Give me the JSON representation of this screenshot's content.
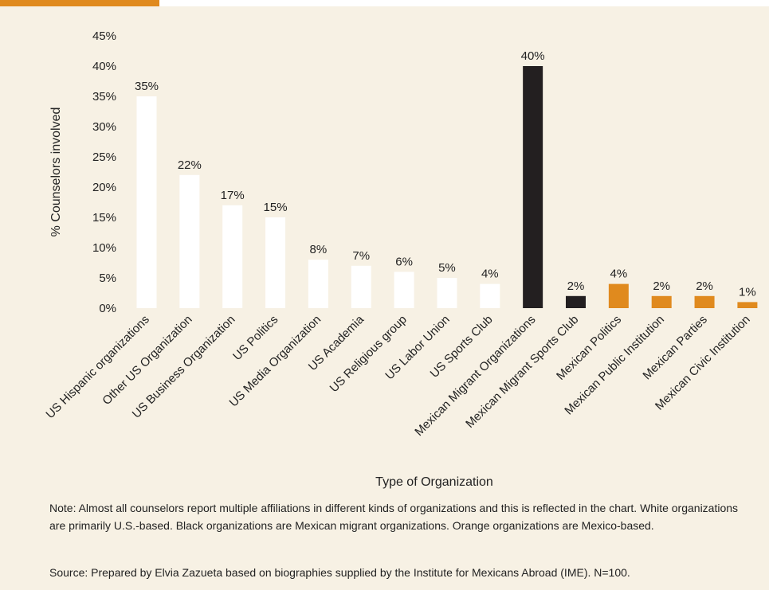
{
  "chart_data": {
    "type": "bar",
    "x_label": "Type of Organization",
    "y_label": "% Counselors involved",
    "categories": [
      "US Hispanic organizations",
      "Other US Organization",
      "US Business Organization",
      "US Politics",
      "US Media Organization",
      "US Academia",
      "US Religious group",
      "US Labor Union",
      "US Sports Club",
      "Mexican Migrant Organizations",
      "Mexican Migrant Sports Club",
      "Mexican Politics",
      "Mexican Public Institution",
      "Mexican Parties",
      "Mexican Civic Institution"
    ],
    "values": [
      35,
      22,
      17,
      15,
      8,
      7,
      6,
      5,
      4,
      40,
      2,
      4,
      2,
      2,
      1
    ],
    "value_labels": [
      "35%",
      "22%",
      "17%",
      "15%",
      "8%",
      "7%",
      "6%",
      "5%",
      "4%",
      "40%",
      "2%",
      "4%",
      "2%",
      "2%",
      "1%"
    ],
    "colors": [
      "#ffffff",
      "#ffffff",
      "#ffffff",
      "#ffffff",
      "#ffffff",
      "#ffffff",
      "#ffffff",
      "#ffffff",
      "#ffffff",
      "#231f20",
      "#231f20",
      "#e08a1e",
      "#e08a1e",
      "#e08a1e",
      "#e08a1e"
    ],
    "ylim": [
      0,
      45
    ],
    "yticks": [
      {
        "value": 0,
        "label": "0%"
      },
      {
        "value": 5,
        "label": "5%"
      },
      {
        "value": 10,
        "label": "10%"
      },
      {
        "value": 15,
        "label": "15%"
      },
      {
        "value": 20,
        "label": "20%"
      },
      {
        "value": 25,
        "label": "25%"
      },
      {
        "value": 30,
        "label": "30%"
      },
      {
        "value": 35,
        "label": "35%"
      },
      {
        "value": 40,
        "label": "40%"
      },
      {
        "value": 45,
        "label": "45%"
      }
    ],
    "grid": false,
    "note": "Note: Almost all counselors report multiple affiliations in different kinds of organizations and this is reflected in the chart. White organizations are primarily U.S.-based. Black organizations are Mexican migrant organizations. Orange organizations are Mexico-based.",
    "source": "Source: Prepared by Elvia Zazueta based on biographies supplied by the Institute for Mexicans Abroad (IME). N=100."
  }
}
